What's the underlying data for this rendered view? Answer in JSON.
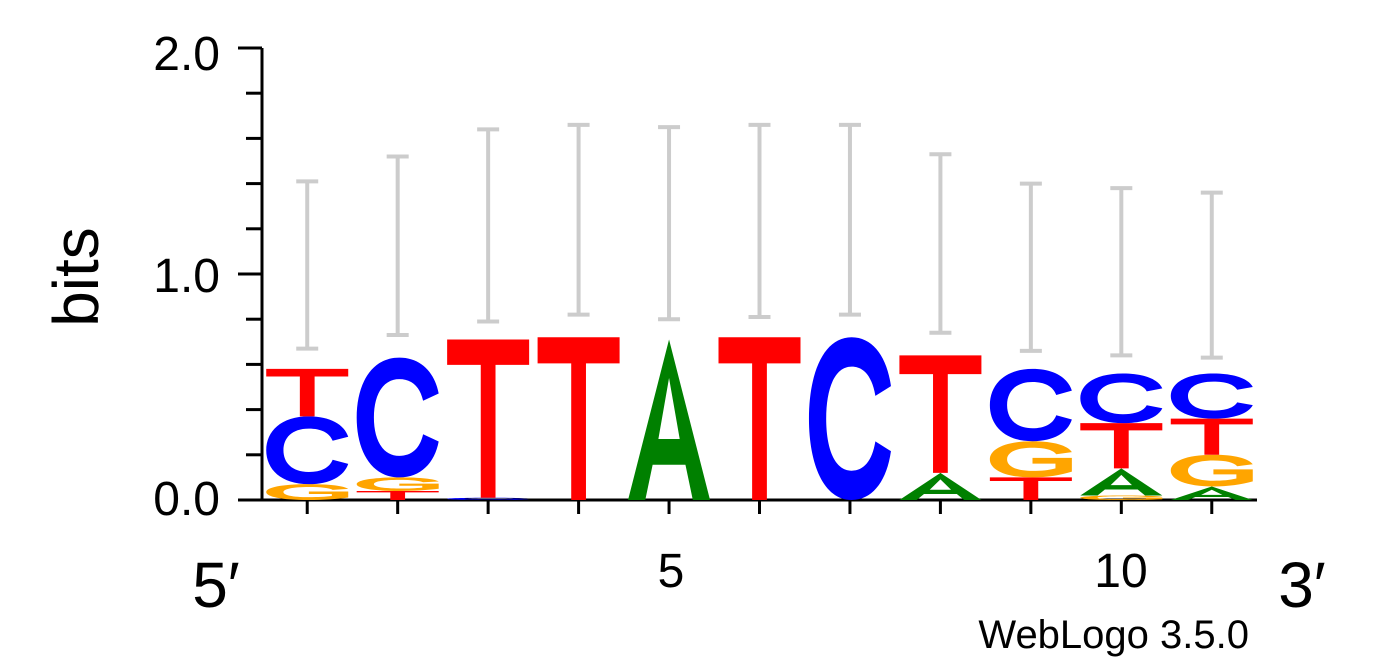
{
  "chart_data": {
    "type": "sequence-logo",
    "ylabel": "bits",
    "ylim": [
      0,
      2.0
    ],
    "yticks": [
      "0.0",
      "1.0",
      "2.0"
    ],
    "xticks": [
      "5",
      "10"
    ],
    "end_left": "5′",
    "end_right": "3′",
    "credit": "WebLogo 3.5.0",
    "colors": {
      "A": "#008000",
      "C": "#0000ff",
      "G": "#ffa500",
      "T": "#ff0000",
      "error_bar": "#cccccc"
    },
    "positions": [
      {
        "pos": 1,
        "letters": [
          {
            "base": "G",
            "bits": 0.07
          },
          {
            "base": "C",
            "bits": 0.3
          },
          {
            "base": "T",
            "bits": 0.21
          }
        ],
        "err": [
          0.67,
          1.41
        ]
      },
      {
        "pos": 2,
        "letters": [
          {
            "base": "T",
            "bits": 0.04
          },
          {
            "base": "G",
            "bits": 0.06
          },
          {
            "base": "C",
            "bits": 0.53
          }
        ],
        "err": [
          0.73,
          1.52
        ]
      },
      {
        "pos": 3,
        "letters": [
          {
            "base": "C",
            "bits": 0.01
          },
          {
            "base": "T",
            "bits": 0.7
          }
        ],
        "err": [
          0.79,
          1.64
        ]
      },
      {
        "pos": 4,
        "letters": [
          {
            "base": "T",
            "bits": 0.72
          }
        ],
        "err": [
          0.82,
          1.66
        ]
      },
      {
        "pos": 5,
        "letters": [
          {
            "base": "A",
            "bits": 0.71
          }
        ],
        "err": [
          0.8,
          1.65
        ]
      },
      {
        "pos": 6,
        "letters": [
          {
            "base": "T",
            "bits": 0.72
          }
        ],
        "err": [
          0.81,
          1.66
        ]
      },
      {
        "pos": 7,
        "letters": [
          {
            "base": "C",
            "bits": 0.72
          }
        ],
        "err": [
          0.82,
          1.66
        ]
      },
      {
        "pos": 8,
        "letters": [
          {
            "base": "A",
            "bits": 0.12
          },
          {
            "base": "T",
            "bits": 0.52
          }
        ],
        "err": [
          0.74,
          1.53
        ]
      },
      {
        "pos": 9,
        "letters": [
          {
            "base": "T",
            "bits": 0.1
          },
          {
            "base": "G",
            "bits": 0.16
          },
          {
            "base": "C",
            "bits": 0.32
          }
        ],
        "err": [
          0.66,
          1.4
        ]
      },
      {
        "pos": 10,
        "letters": [
          {
            "base": "G",
            "bits": 0.02
          },
          {
            "base": "A",
            "bits": 0.12
          },
          {
            "base": "T",
            "bits": 0.2
          },
          {
            "base": "C",
            "bits": 0.22
          }
        ],
        "err": [
          0.64,
          1.38
        ]
      },
      {
        "pos": 11,
        "letters": [
          {
            "base": "A",
            "bits": 0.06
          },
          {
            "base": "G",
            "bits": 0.14
          },
          {
            "base": "T",
            "bits": 0.16
          },
          {
            "base": "C",
            "bits": 0.2
          }
        ],
        "err": [
          0.63,
          1.36
        ]
      }
    ]
  }
}
